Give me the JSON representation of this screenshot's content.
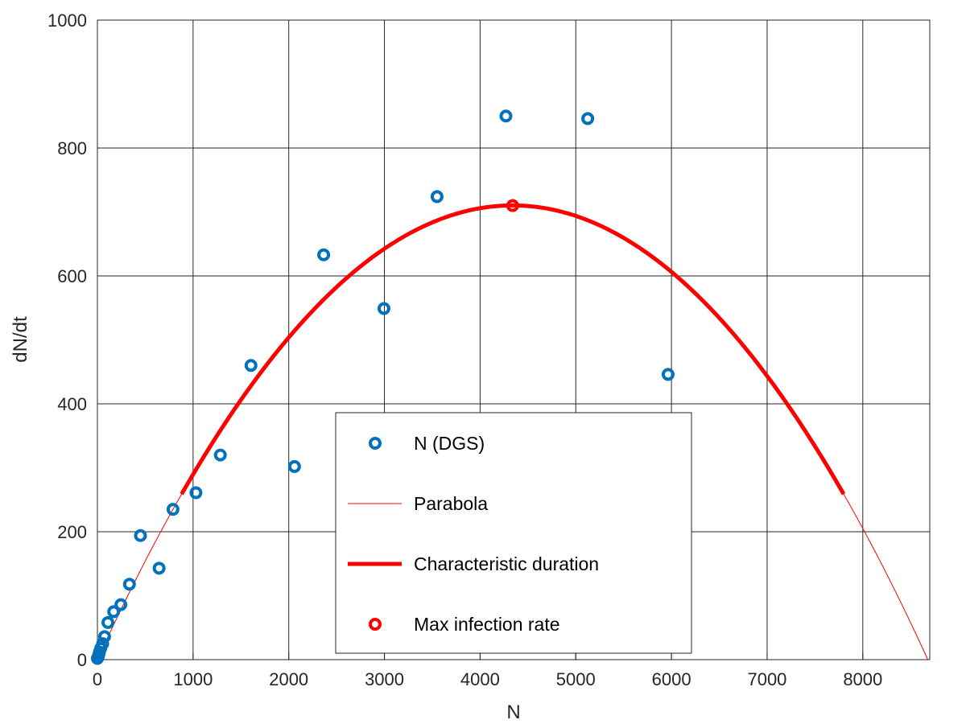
{
  "chart_data": {
    "type": "scatter",
    "title": "",
    "xlabel": "N",
    "ylabel": "dN/dt",
    "xlim": [
      0,
      8700
    ],
    "ylim": [
      0,
      1000
    ],
    "xticks": [
      0,
      1000,
      2000,
      3000,
      4000,
      5000,
      6000,
      7000,
      8000
    ],
    "yticks": [
      0,
      200,
      400,
      600,
      800,
      1000
    ],
    "x_tick_labels": [
      "0",
      "1000",
      "2000",
      "3000",
      "4000",
      "5000",
      "6000",
      "7000",
      "8000"
    ],
    "y_tick_labels": [
      "0",
      "200",
      "400",
      "600",
      "800",
      "1000"
    ],
    "grid": true,
    "legend_position": "bottom-center",
    "series": [
      {
        "name": "N (DGS)",
        "kind": "scatter",
        "color": "#0072BD",
        "points": [
          [
            0,
            2
          ],
          [
            5,
            3
          ],
          [
            10,
            5
          ],
          [
            15,
            8
          ],
          [
            22,
            12
          ],
          [
            35,
            18
          ],
          [
            55,
            25
          ],
          [
            75,
            36
          ],
          [
            110,
            58
          ],
          [
            170,
            75
          ],
          [
            245,
            86
          ],
          [
            335,
            118
          ],
          [
            450,
            194
          ],
          [
            645,
            143
          ],
          [
            790,
            235
          ],
          [
            1030,
            261
          ],
          [
            1285,
            320
          ],
          [
            1605,
            460
          ],
          [
            2060,
            302
          ],
          [
            2365,
            633
          ],
          [
            2995,
            549
          ],
          [
            3550,
            724
          ],
          [
            4270,
            850
          ],
          [
            5125,
            846
          ],
          [
            5965,
            446
          ]
        ]
      },
      {
        "name": "Parabola",
        "kind": "line",
        "color": "#FF0000",
        "a": 0.3273,
        "root": 8680,
        "x_range": [
          0,
          8680
        ]
      },
      {
        "name": "Characteristic duration",
        "kind": "line",
        "color": "#FF0000",
        "a": 0.3273,
        "root": 8680,
        "x_range": [
          880,
          7800
        ]
      },
      {
        "name": "Max infection rate",
        "kind": "point",
        "color": "#FF0000",
        "points": [
          [
            4340,
            710
          ]
        ]
      }
    ]
  },
  "legend": {
    "items": [
      {
        "label": "N (DGS)"
      },
      {
        "label": "Parabola"
      },
      {
        "label": "Characteristic duration"
      },
      {
        "label": "Max infection rate"
      }
    ]
  }
}
